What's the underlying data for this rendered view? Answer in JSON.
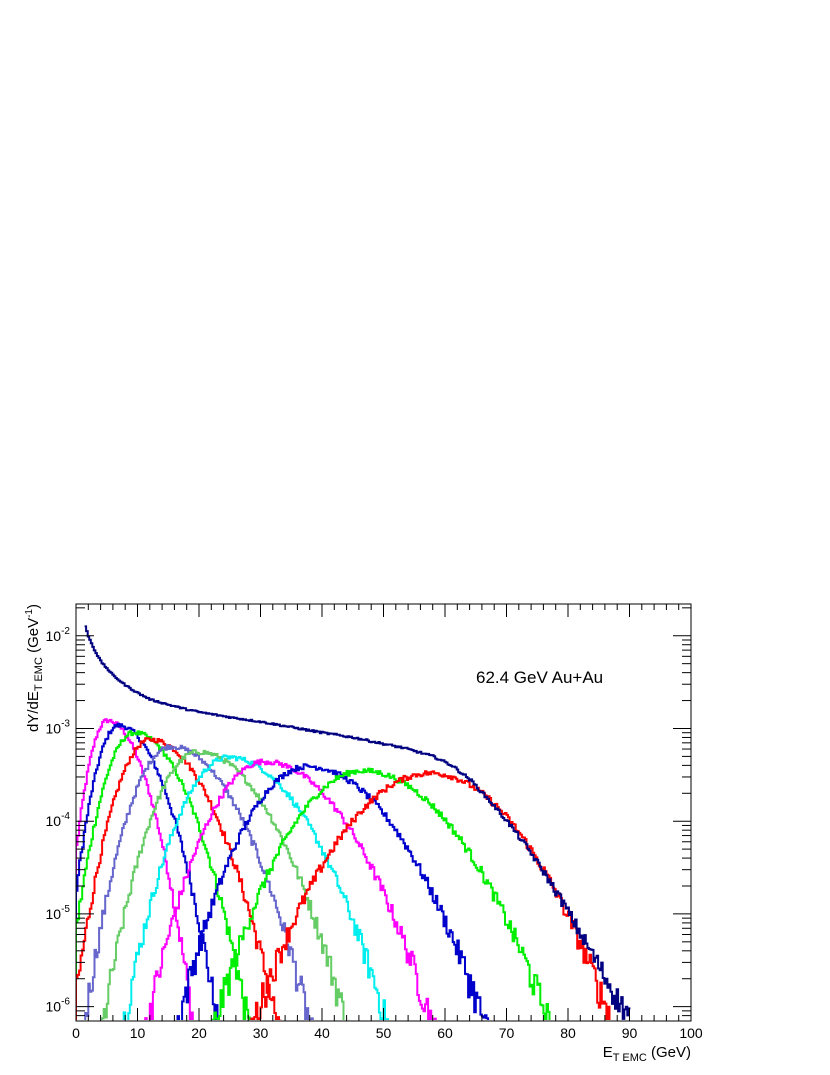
{
  "chart_data": {
    "type": "line",
    "title": "",
    "annotation": "62.4 GeV Au+Au",
    "xlabel": {
      "main": "E",
      "sub": "T EMC",
      "rest": " (GeV)"
    },
    "ylabel": {
      "main": "dY/dE",
      "sub": "T EMC",
      "rest_pre": " (GeV",
      "sup": "-1",
      "rest_post": ")"
    },
    "xlim": [
      0,
      100
    ],
    "ylim": [
      7e-07,
      0.022
    ],
    "yscale": "log",
    "grid": false,
    "legend": "none",
    "x_ticks": [
      0,
      10,
      20,
      30,
      40,
      50,
      60,
      70,
      80,
      90,
      100
    ],
    "y_ticks": [
      {
        "value": 1e-06,
        "mant": "10",
        "exp": "-6"
      },
      {
        "value": 1e-05,
        "mant": "10",
        "exp": "-5"
      },
      {
        "value": 0.0001,
        "mant": "10",
        "exp": "-4"
      },
      {
        "value": 0.001,
        "mant": "10",
        "exp": "-3"
      },
      {
        "value": 0.01,
        "mant": "10",
        "exp": "-2"
      }
    ],
    "total": {
      "color": "#000080",
      "points": [
        [
          1.4,
          0.0125
        ],
        [
          2,
          0.0095
        ],
        [
          3,
          0.0068
        ],
        [
          4,
          0.0052
        ],
        [
          6,
          0.0037
        ],
        [
          8,
          0.0029
        ],
        [
          10,
          0.0024
        ],
        [
          12,
          0.00205
        ],
        [
          15,
          0.0018
        ],
        [
          18,
          0.0016
        ],
        [
          20,
          0.0015
        ],
        [
          25,
          0.00132
        ],
        [
          30,
          0.00118
        ],
        [
          35,
          0.00103
        ],
        [
          40,
          0.0009
        ],
        [
          45,
          0.0008
        ],
        [
          50,
          0.00068
        ],
        [
          53,
          0.00062
        ],
        [
          55,
          0.00057
        ],
        [
          58,
          0.0005
        ],
        [
          61,
          0.0004
        ],
        [
          64,
          0.00028
        ],
        [
          67,
          0.00017
        ],
        [
          70,
          0.0001
        ],
        [
          73,
          5.5e-05
        ],
        [
          76,
          2.8e-05
        ],
        [
          79,
          1.35e-05
        ],
        [
          82,
          6e-06
        ],
        [
          85,
          2.7e-06
        ],
        [
          88,
          1.2e-06
        ],
        [
          90,
          8e-07
        ]
      ]
    },
    "series": [
      {
        "color": "#ff00ff",
        "mu": 5.0,
        "peak": 0.00122,
        "sl": 2.0,
        "sr": 3.6
      },
      {
        "color": "#0000cc",
        "mu": 6.8,
        "peak": 0.00108,
        "sl": 2.4,
        "sr": 4.2
      },
      {
        "color": "#00ee00",
        "mu": 9.3,
        "peak": 0.0009,
        "sl": 3.0,
        "sr": 4.9
      },
      {
        "color": "#ff0000",
        "mu": 12.0,
        "peak": 0.00076,
        "sl": 3.4,
        "sr": 5.5
      },
      {
        "color": "#6666cc",
        "mu": 15.3,
        "peak": 0.00064,
        "sl": 3.8,
        "sr": 6.1
      },
      {
        "color": "#66cc66",
        "mu": 19.7,
        "peak": 0.00056,
        "sl": 4.2,
        "sr": 6.6
      },
      {
        "color": "#00eeee",
        "mu": 24.7,
        "peak": 0.00049,
        "sl": 4.7,
        "sr": 7.1
      },
      {
        "color": "#ff00ff",
        "mu": 30.5,
        "peak": 0.00044,
        "sl": 5.3,
        "sr": 7.6
      },
      {
        "color": "#0000cc",
        "mu": 37.5,
        "peak": 0.00039,
        "sl": 5.9,
        "sr": 8.1
      },
      {
        "color": "#00ee00",
        "mu": 46.5,
        "peak": 0.00035,
        "sl": 6.8,
        "sr": 8.6
      },
      {
        "color": "#ff0000",
        "mu": 57.5,
        "peak": 0.00033,
        "sl": 8.2,
        "sr": 8.4
      }
    ]
  }
}
